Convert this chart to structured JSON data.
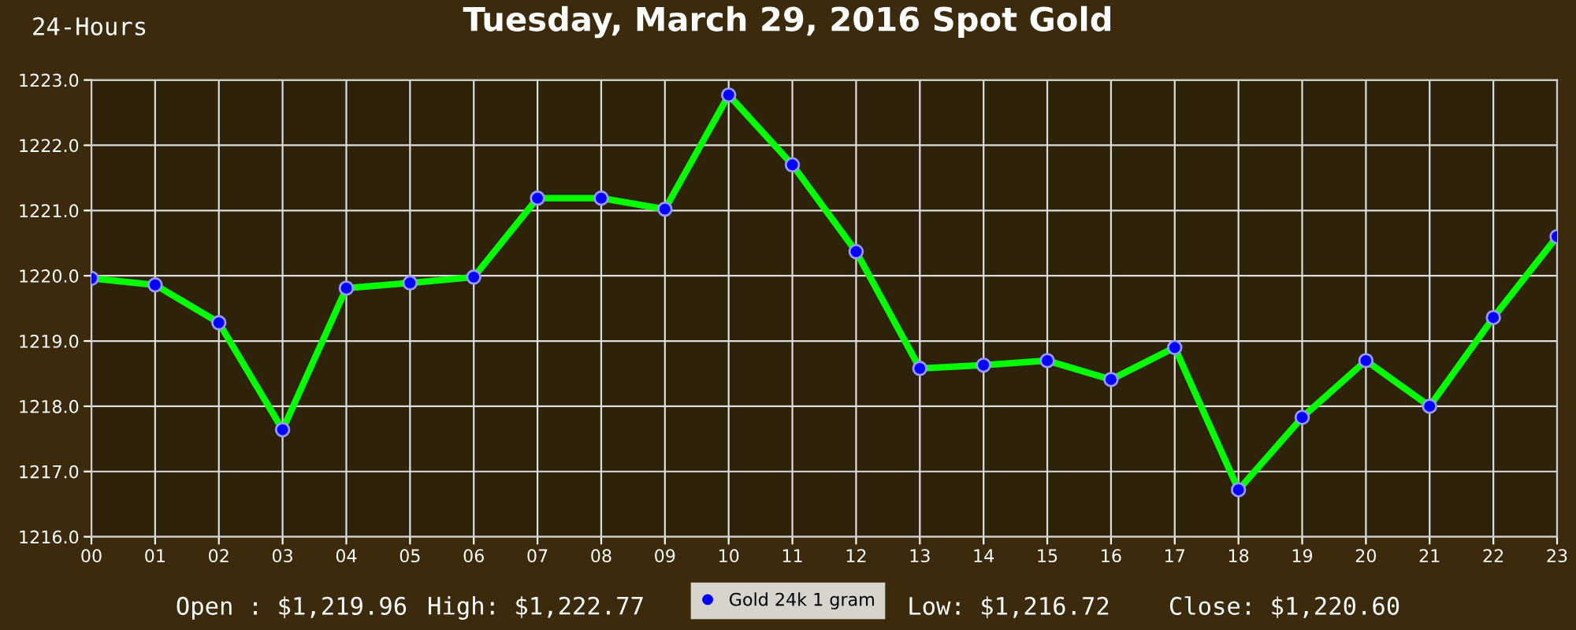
{
  "chart_data": {
    "type": "line",
    "title": "Tuesday, March 29, 2016 Spot Gold",
    "categories": [
      "00",
      "01",
      "02",
      "03",
      "04",
      "05",
      "06",
      "07",
      "08",
      "09",
      "10",
      "11",
      "12",
      "13",
      "14",
      "15",
      "16",
      "17",
      "18",
      "19",
      "20",
      "21",
      "22",
      "23"
    ],
    "series": [
      {
        "name": "Gold 24k 1 gram",
        "color": "#00ff00",
        "values": [
          1219.96,
          1219.86,
          1219.28,
          1217.64,
          1219.81,
          1219.89,
          1219.98,
          1221.19,
          1221.19,
          1221.02,
          1222.77,
          1221.7,
          1220.37,
          1218.58,
          1218.63,
          1218.7,
          1218.41,
          1218.9,
          1216.72,
          1217.83,
          1218.7,
          1218.0,
          1219.36,
          1220.6
        ]
      }
    ],
    "ylim": [
      1216,
      1223
    ],
    "yticks": [
      {
        "value": 1216,
        "label": "1216.0"
      },
      {
        "value": 1217,
        "label": "1217.0"
      },
      {
        "value": 1218,
        "label": "1218.0"
      },
      {
        "value": 1219,
        "label": "1219.0"
      },
      {
        "value": 1220,
        "label": "1220.0"
      },
      {
        "value": 1221,
        "label": "1221.0"
      },
      {
        "value": 1222,
        "label": "1222.0"
      },
      {
        "value": 1223,
        "label": "1223.0"
      }
    ],
    "annotations": [
      "24-Hours",
      "Open : $1,219.96",
      "High: $1,222.77",
      "Low: $1,216.72",
      "Close: $1,220.60"
    ],
    "grid": true,
    "legend": "bottom",
    "marker": "circle",
    "line_style": "solid"
  }
}
